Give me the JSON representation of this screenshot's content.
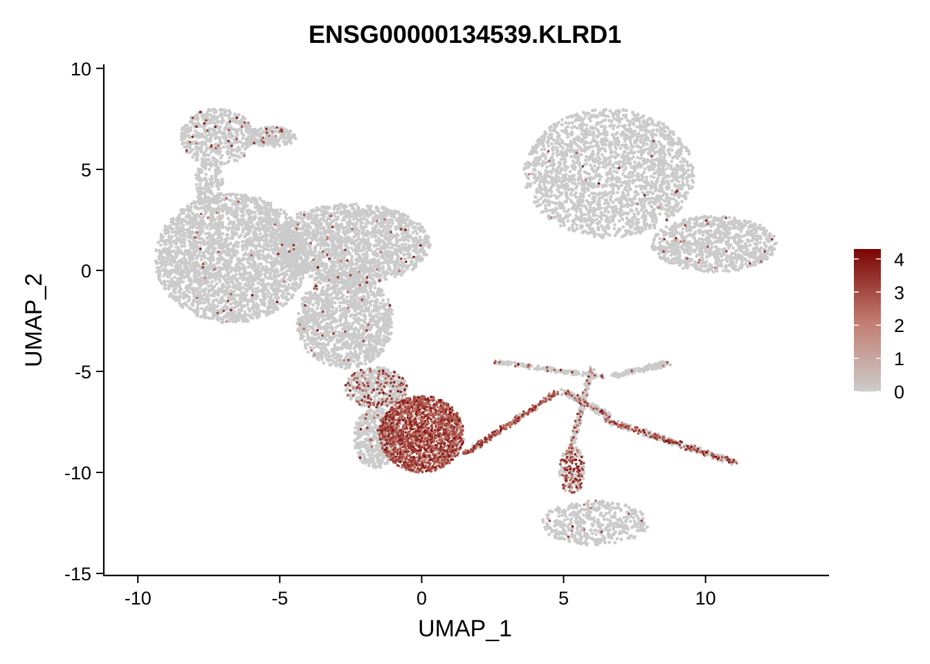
{
  "chart_data": {
    "type": "scatter",
    "title": "ENSG00000134539.KLRD1",
    "xlabel": "UMAP_1",
    "ylabel": "UMAP_2",
    "xlim": [
      -11.2,
      14.3
    ],
    "ylim": [
      -15.1,
      10.2
    ],
    "xticks": [
      -10,
      -5,
      0,
      5,
      10
    ],
    "yticks": [
      10,
      5,
      0,
      -5,
      -10,
      -15
    ],
    "xtick_labels": [
      "-10",
      "-5",
      "0",
      "5",
      "10"
    ],
    "ytick_labels": [
      "10",
      "5",
      "0",
      "-5",
      "-10",
      "-15"
    ],
    "grid": false,
    "legend": {
      "position": "right",
      "type": "colorbar",
      "range": [
        0,
        4.3
      ],
      "ticks": [
        4,
        3,
        2,
        1,
        0
      ],
      "tick_labels": [
        "4",
        "3",
        "2",
        "1",
        "0"
      ],
      "colors": {
        "low": "#cccccc",
        "mid": "#c27a6e",
        "high": "#7a0403"
      }
    },
    "background_cells_color": "#cbcbcb",
    "clusters": [
      {
        "id": "upper-left-arm",
        "shape": "ellipse",
        "cx": -7.2,
        "cy": 6.6,
        "rx": 1.3,
        "ry": 1.4,
        "expr": 0.05,
        "n": 500
      },
      {
        "id": "upper-left-tip",
        "shape": "ellipse",
        "cx": -5.3,
        "cy": 6.6,
        "rx": 0.9,
        "ry": 0.5,
        "expr": 0.05,
        "n": 200
      },
      {
        "id": "upper-left-stem",
        "shape": "ellipse",
        "cx": -7.5,
        "cy": 4.3,
        "rx": 0.5,
        "ry": 1.1,
        "expr": 0.0,
        "n": 150
      },
      {
        "id": "left-main-body",
        "shape": "ellipse",
        "cx": -6.7,
        "cy": 0.6,
        "rx": 2.7,
        "ry": 3.2,
        "expr": 0.01,
        "n": 2600
      },
      {
        "id": "center-upper-body",
        "shape": "ellipse",
        "cx": -2.5,
        "cy": 1.3,
        "rx": 2.8,
        "ry": 2.0,
        "expr": 0.02,
        "n": 1800
      },
      {
        "id": "center-lower-body",
        "shape": "ellipse",
        "cx": -2.7,
        "cy": -2.5,
        "rx": 1.7,
        "ry": 2.4,
        "expr": 0.02,
        "n": 1300
      },
      {
        "id": "neck-to-nk",
        "shape": "ellipse",
        "cx": -1.6,
        "cy": -5.8,
        "rx": 1.1,
        "ry": 1.0,
        "expr": 0.25,
        "n": 500
      },
      {
        "id": "nk-left-grey",
        "shape": "ellipse",
        "cx": -1.6,
        "cy": -8.3,
        "rx": 0.8,
        "ry": 1.5,
        "expr": 0.03,
        "n": 450
      },
      {
        "id": "nk-cluster-red",
        "shape": "ellipse",
        "cx": 0.0,
        "cy": -8.1,
        "rx": 1.5,
        "ry": 1.9,
        "expr": 0.95,
        "n": 1900
      },
      {
        "id": "right-cluster",
        "shape": "ellipse",
        "cx": 6.6,
        "cy": 4.8,
        "rx": 3.0,
        "ry": 3.2,
        "expr": 0.01,
        "n": 2100
      },
      {
        "id": "right-tail",
        "shape": "ellipse",
        "cx": 10.3,
        "cy": 1.3,
        "rx": 2.2,
        "ry": 1.4,
        "expr": 0.02,
        "n": 900
      },
      {
        "id": "lower-right-blob",
        "shape": "ellipse",
        "cx": 6.1,
        "cy": -12.5,
        "rx": 1.9,
        "ry": 1.1,
        "expr": 0.03,
        "n": 450
      },
      {
        "id": "lower-right-stem",
        "shape": "ellipse",
        "cx": 5.3,
        "cy": -9.9,
        "rx": 0.45,
        "ry": 1.2,
        "expr": 0.6,
        "n": 200
      }
    ],
    "trajectories": [
      {
        "id": "nk-streak",
        "from": [
          1.5,
          -9.1
        ],
        "to": [
          4.8,
          -6.0
        ],
        "width": 0.2,
        "expr": 0.75,
        "n": 260
      },
      {
        "id": "upper-branch",
        "from": [
          2.5,
          -4.5
        ],
        "to": [
          6.5,
          -5.3
        ],
        "width": 0.2,
        "expr": 0.12,
        "n": 140
      },
      {
        "id": "far-right-branch",
        "from": [
          6.8,
          -5.2
        ],
        "to": [
          8.7,
          -4.6
        ],
        "width": 0.25,
        "expr": 0.02,
        "n": 140
      },
      {
        "id": "central-cross-a",
        "from": [
          5.0,
          -6.0
        ],
        "to": [
          6.6,
          -7.2
        ],
        "width": 0.25,
        "expr": 0.15,
        "n": 170
      },
      {
        "id": "central-cross-b",
        "from": [
          6.0,
          -4.8
        ],
        "to": [
          5.2,
          -9.2
        ],
        "width": 0.2,
        "expr": 0.25,
        "n": 160
      },
      {
        "id": "lower-right-branch",
        "from": [
          6.5,
          -7.4
        ],
        "to": [
          11.0,
          -9.5
        ],
        "width": 0.25,
        "expr": 0.45,
        "n": 320
      }
    ]
  }
}
